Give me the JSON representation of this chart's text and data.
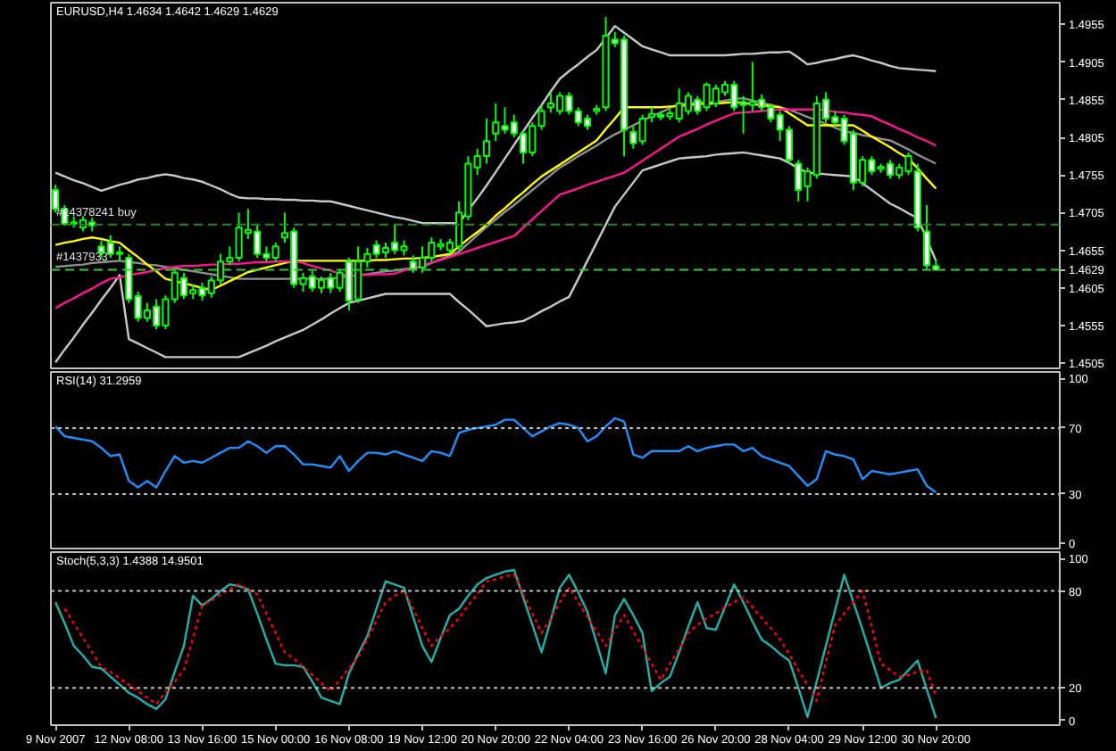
{
  "chart_data": [
    {
      "type": "candlestick",
      "title": "EURUSD,H4  1.4634 1.4642 1.4629 1.4629",
      "color": "#00ff00",
      "categories": [
        null,
        null,
        null,
        null,
        null,
        null,
        null,
        null,
        null,
        null,
        null,
        null,
        null,
        null,
        null,
        null,
        null,
        null,
        null,
        null,
        null,
        null,
        null,
        null,
        null,
        null,
        null,
        null,
        null,
        null,
        null,
        null,
        null,
        null,
        null,
        null,
        null,
        null,
        null,
        null,
        null,
        null,
        null,
        null,
        null,
        null,
        null,
        null,
        null,
        null,
        null,
        null,
        null,
        null,
        null,
        null,
        null,
        null,
        null,
        null,
        null,
        null,
        null,
        null,
        null,
        null,
        null,
        null,
        null,
        null,
        null,
        null,
        null,
        null,
        null,
        null,
        null,
        null,
        null,
        null,
        null,
        null,
        null,
        null,
        null,
        null,
        null,
        null,
        null,
        null,
        null,
        null,
        null,
        null,
        null,
        null,
        null
      ],
      "ohlc": [
        [
          1.4735,
          1.4742,
          1.4705,
          1.471
        ],
        [
          1.471,
          1.4715,
          1.4688,
          1.469
        ],
        [
          1.469,
          1.47,
          1.4685,
          1.4692
        ],
        [
          1.4685,
          1.47,
          1.468,
          1.4695
        ],
        [
          1.4692,
          1.4698,
          1.468,
          1.4688
        ],
        [
          1.466,
          1.4668,
          1.4645,
          1.4652
        ],
        [
          1.4665,
          1.4675,
          1.4645,
          1.465
        ],
        [
          1.465,
          1.466,
          1.464,
          1.4652
        ],
        [
          1.4645,
          1.465,
          1.4585,
          1.459
        ],
        [
          1.4594,
          1.46,
          1.456,
          1.4565
        ],
        [
          1.4565,
          1.4585,
          1.456,
          1.4575
        ],
        [
          1.458,
          1.459,
          1.455,
          1.4555
        ],
        [
          1.4555,
          1.4595,
          1.455,
          1.459
        ],
        [
          1.459,
          1.463,
          1.4585,
          1.4625
        ],
        [
          1.4618,
          1.4625,
          1.459,
          1.4595
        ],
        [
          1.4598,
          1.461,
          1.459,
          1.4602
        ],
        [
          1.4605,
          1.4612,
          1.4588,
          1.4595
        ],
        [
          1.4598,
          1.462,
          1.4592,
          1.4615
        ],
        [
          1.4615,
          1.465,
          1.461,
          1.464
        ],
        [
          1.464,
          1.466,
          1.4635,
          1.4645
        ],
        [
          1.4645,
          1.4705,
          1.464,
          1.4685
        ],
        [
          1.4678,
          1.471,
          1.467,
          1.4682
        ],
        [
          1.468,
          1.4688,
          1.4645,
          1.465
        ],
        [
          1.465,
          1.466,
          1.464,
          1.4645
        ],
        [
          1.4645,
          1.4665,
          1.464,
          1.466
        ],
        [
          1.4672,
          1.4705,
          1.4665,
          1.4678
        ],
        [
          1.468,
          1.4685,
          1.4605,
          1.461
        ],
        [
          1.461,
          1.4625,
          1.46,
          1.4618
        ],
        [
          1.462,
          1.4628,
          1.46,
          1.4605
        ],
        [
          1.4605,
          1.462,
          1.4598,
          1.4615
        ],
        [
          1.4618,
          1.4625,
          1.4598,
          1.4605
        ],
        [
          1.4605,
          1.463,
          1.46,
          1.4625
        ],
        [
          1.464,
          1.4645,
          1.4575,
          1.4588
        ],
        [
          1.459,
          1.466,
          1.4585,
          1.464
        ],
        [
          1.464,
          1.4658,
          1.4632,
          1.465
        ],
        [
          1.4662,
          1.4668,
          1.4645,
          1.465
        ],
        [
          1.4652,
          1.4665,
          1.4645,
          1.4658
        ],
        [
          1.4665,
          1.469,
          1.465,
          1.4655
        ],
        [
          1.4655,
          1.4668,
          1.4648,
          1.466
        ],
        [
          1.464,
          1.4648,
          1.4625,
          1.463
        ],
        [
          1.4632,
          1.466,
          1.4625,
          1.4645
        ],
        [
          1.4645,
          1.4672,
          1.464,
          1.4665
        ],
        [
          1.466,
          1.467,
          1.4655,
          1.4663
        ],
        [
          1.4655,
          1.467,
          1.465,
          1.4665
        ],
        [
          1.466,
          1.472,
          1.4655,
          1.4705
        ],
        [
          1.47,
          1.478,
          1.4695,
          1.477
        ],
        [
          1.4765,
          1.479,
          1.4755,
          1.478
        ],
        [
          1.478,
          1.483,
          1.477,
          1.48
        ],
        [
          1.481,
          1.485,
          1.48,
          1.4825
        ],
        [
          1.482,
          1.4845,
          1.481,
          1.4815
        ],
        [
          1.4825,
          1.4835,
          1.4805,
          1.481
        ],
        [
          1.481,
          1.4815,
          1.477,
          1.4785
        ],
        [
          1.4785,
          1.4825,
          1.478,
          1.482
        ],
        [
          1.482,
          1.4848,
          1.4815,
          1.484
        ],
        [
          1.4845,
          1.4865,
          1.4838,
          1.485
        ],
        [
          1.484,
          1.4865,
          1.4835,
          1.486
        ],
        [
          1.486,
          1.4865,
          1.4835,
          1.484
        ],
        [
          1.484,
          1.4845,
          1.482,
          1.4825
        ],
        [
          1.483,
          1.4835,
          1.4815,
          1.482
        ],
        [
          1.484,
          1.4848,
          1.4835,
          1.4843
        ],
        [
          1.4845,
          1.4965,
          1.484,
          1.494
        ],
        [
          1.4935,
          1.4945,
          1.4925,
          1.493
        ],
        [
          1.4935,
          1.494,
          1.478,
          1.4815
        ],
        [
          1.4812,
          1.482,
          1.479,
          1.4797
        ],
        [
          1.48,
          1.4835,
          1.4795,
          1.483
        ],
        [
          1.4832,
          1.4845,
          1.4825,
          1.4836
        ],
        [
          1.4835,
          1.484,
          1.4828,
          1.4832
        ],
        [
          1.4833,
          1.4842,
          1.4828,
          1.4837
        ],
        [
          1.483,
          1.487,
          1.4825,
          1.485
        ],
        [
          1.484,
          1.4865,
          1.4835,
          1.486
        ],
        [
          1.4855,
          1.486,
          1.4835,
          1.484
        ],
        [
          1.4845,
          1.4878,
          1.484,
          1.4875
        ],
        [
          1.485,
          1.4875,
          1.4845,
          1.487
        ],
        [
          1.4865,
          1.488,
          1.486,
          1.4875
        ],
        [
          1.4875,
          1.488,
          1.484,
          1.4845
        ],
        [
          1.4852,
          1.486,
          1.481,
          1.4848
        ],
        [
          1.4848,
          1.4905,
          1.484,
          1.4852
        ],
        [
          1.4855,
          1.4862,
          1.484,
          1.4845
        ],
        [
          1.4845,
          1.485,
          1.4825,
          1.483
        ],
        [
          1.4835,
          1.484,
          1.48,
          1.4815
        ],
        [
          1.4815,
          1.482,
          1.477,
          1.4775
        ],
        [
          1.477,
          1.4775,
          1.472,
          1.4735
        ],
        [
          1.474,
          1.4765,
          1.472,
          1.476
        ],
        [
          1.4755,
          1.486,
          1.475,
          1.485
        ],
        [
          1.4855,
          1.4865,
          1.4825,
          1.483
        ],
        [
          1.4832,
          1.484,
          1.482,
          1.4825
        ],
        [
          1.483,
          1.4835,
          1.4795,
          1.48
        ],
        [
          1.481,
          1.4815,
          1.4735,
          1.4745
        ],
        [
          1.4745,
          1.478,
          1.474,
          1.4775
        ],
        [
          1.4775,
          1.478,
          1.4755,
          1.476
        ],
        [
          1.4763,
          1.477,
          1.4758,
          1.4766
        ],
        [
          1.477,
          1.4775,
          1.475,
          1.4755
        ],
        [
          1.4755,
          1.477,
          1.475,
          1.4765
        ],
        [
          1.476,
          1.4785,
          1.4755,
          1.478
        ],
        [
          1.476,
          1.477,
          1.468,
          1.4685
        ],
        [
          1.468,
          1.4715,
          1.463,
          1.4635
        ],
        [
          1.4634,
          1.4642,
          1.4629,
          1.4629
        ]
      ],
      "colors": [
        "#ffffff",
        "#ffffff",
        "#000000",
        "#000000",
        "#ffffff",
        "#ffffff",
        "#ffffff",
        "#000000",
        "#ffffff",
        "#ffffff",
        "#000000",
        "#ffffff",
        "#000000",
        "#000000",
        "#ffffff",
        "#000000",
        "#ffffff",
        "#000000",
        "#000000",
        "#000000",
        "#000000",
        "#000000",
        "#ffffff",
        "#ffffff",
        "#000000",
        "#000000",
        "#ffffff",
        "#000000",
        "#ffffff",
        "#000000",
        "#ffffff",
        "#000000",
        "#ffffff",
        "#000000",
        "#000000",
        "#ffffff",
        "#000000",
        "#ffffff",
        "#000000",
        "#ffffff",
        "#000000",
        "#000000",
        "#000000",
        "#000000",
        "#000000",
        "#000000",
        "#000000",
        "#000000",
        "#000000",
        "#ffffff",
        "#ffffff",
        "#ffffff",
        "#000000",
        "#000000",
        "#000000",
        "#000000",
        "#ffffff",
        "#ffffff",
        "#ffffff",
        "#000000",
        "#000000",
        "#ffffff",
        "#ffffff",
        "#ffffff",
        "#000000",
        "#000000",
        "#ffffff",
        "#000000",
        "#000000",
        "#000000",
        "#ffffff",
        "#000000",
        "#000000",
        "#000000",
        "#ffffff",
        "#ffffff",
        "#000000",
        "#ffffff",
        "#ffffff",
        "#ffffff",
        "#ffffff",
        "#ffffff",
        "#000000",
        "#000000",
        "#ffffff",
        "#ffffff",
        "#ffffff",
        "#ffffff",
        "#000000",
        "#ffffff",
        "#000000",
        "#ffffff",
        "#000000",
        "#000000",
        "#ffffff",
        "#ffffff",
        "#ffffff"
      ],
      "series": [
        {
          "type": "line",
          "color": "#c8c8c8",
          "values": [
            1.4758,
            1.4753,
            1.4748,
            1.4744,
            1.4739,
            1.4734,
            1.4738,
            1.4742,
            1.4745,
            1.4749,
            1.4751,
            1.4754,
            1.4756,
            1.4754,
            1.4751,
            1.4749,
            1.4746,
            1.4741,
            1.4736,
            1.473,
            1.4725,
            1.4724,
            1.4724,
            1.4723,
            1.4723,
            1.4722,
            1.4722,
            1.4721,
            1.4721,
            1.472,
            1.472,
            1.4717,
            1.4714,
            1.4711,
            1.4708,
            1.4705,
            1.4702,
            1.4699,
            1.4697,
            1.4694,
            1.4691,
            1.4691,
            1.4691,
            1.4691,
            1.4691,
            1.4708,
            1.4724,
            1.4741,
            1.4759,
            1.4777,
            1.4795,
            1.4813,
            1.4831,
            1.4848,
            1.4866,
            1.4883,
            1.4893,
            1.4902,
            1.4912,
            1.4921,
            1.4937,
            1.4953,
            1.4944,
            1.4935,
            1.4926,
            1.4922,
            1.4918,
            1.4914,
            1.4914,
            1.4914,
            1.4914,
            1.4914,
            1.4914,
            1.4914,
            1.4915,
            1.4916,
            1.4916,
            1.4917,
            1.4918,
            1.4918,
            1.4919,
            1.4911,
            1.4902,
            1.4904,
            1.4907,
            1.4909,
            1.4912,
            1.4914,
            1.4911,
            1.4907,
            1.4904,
            1.49,
            1.4897,
            1.4896,
            1.4895,
            1.4894,
            1.4893
          ]
        },
        {
          "type": "line",
          "color": "#909090",
          "values": [
            1.4633,
            1.4634,
            1.4635,
            1.4636,
            1.4638,
            1.4639,
            1.464,
            1.4641,
            1.4639,
            1.4638,
            1.4636,
            1.4635,
            1.4633,
            1.4631,
            1.4629,
            1.4627,
            1.4625,
            1.4623,
            1.4621,
            1.4619,
            1.4617,
            1.4617,
            1.4617,
            1.4617,
            1.4617,
            1.4617,
            1.4617,
            1.4617,
            1.4617,
            1.4617,
            1.4617,
            1.4619,
            1.462,
            1.4622,
            1.4623,
            1.4625,
            1.4627,
            1.4628,
            1.463,
            1.4631,
            1.4633,
            1.4638,
            1.4643,
            1.4648,
            1.4653,
            1.4664,
            1.4675,
            1.4686,
            1.4696,
            1.4706,
            1.4715,
            1.4725,
            1.4735,
            1.4745,
            1.4755,
            1.4765,
            1.4772,
            1.478,
            1.4787,
            1.4794,
            1.4802,
            1.4809,
            1.4815,
            1.4821,
            1.4827,
            1.4833,
            1.4838,
            1.4844,
            1.4849,
            1.485,
            1.4851,
            1.4852,
            1.4852,
            1.4854,
            1.4856,
            1.4857,
            1.4854,
            1.4851,
            1.4848,
            1.4845,
            1.4842,
            1.4837,
            1.4832,
            1.4828,
            1.4823,
            1.4818,
            1.4813,
            1.4811,
            1.4808,
            1.4806,
            1.4803,
            1.4801,
            1.4795,
            1.4789,
            1.4782,
            1.4776,
            1.477
          ]
        },
        {
          "type": "line",
          "color": "#c8c8c8",
          "values": [
            1.4506,
            1.4523,
            1.4539,
            1.4556,
            1.4572,
            1.4589,
            1.4605,
            1.4622,
            1.4537,
            1.4531,
            1.4525,
            1.4519,
            1.4513,
            1.4513,
            1.4513,
            1.4513,
            1.4513,
            1.4513,
            1.4513,
            1.4513,
            1.4513,
            1.4518,
            1.4523,
            1.4528,
            1.4534,
            1.4539,
            1.4544,
            1.4549,
            1.4556,
            1.4563,
            1.4571,
            1.4578,
            1.4585,
            1.4588,
            1.4591,
            1.4594,
            1.4597,
            1.4597,
            1.4597,
            1.4597,
            1.4597,
            1.4597,
            1.4597,
            1.4597,
            1.4586,
            1.4576,
            1.4565,
            1.4554,
            1.4556,
            1.4558,
            1.4559,
            1.4561,
            1.4567,
            1.4574,
            1.458,
            1.4587,
            1.4593,
            1.4617,
            1.4641,
            1.4665,
            1.4689,
            1.4713,
            1.4729,
            1.4745,
            1.4761,
            1.4765,
            1.4769,
            1.4773,
            1.4777,
            1.4778,
            1.4779,
            1.478,
            1.4782,
            1.4783,
            1.4784,
            1.4785,
            1.4783,
            1.4781,
            1.4779,
            1.4777,
            1.4771,
            1.4764,
            1.4758,
            1.4757,
            1.4756,
            1.4755,
            1.4754,
            1.4753,
            1.4744,
            1.4735,
            1.4726,
            1.4717,
            1.4711,
            1.4704,
            1.4698,
            1.467,
            1.4641
          ]
        },
        {
          "type": "line",
          "color": "#ffff00",
          "values": [
            1.4662,
            1.4665,
            1.4667,
            1.467,
            1.4672,
            1.467,
            1.4667,
            1.4665,
            1.4655,
            1.4646,
            1.4636,
            1.4627,
            1.4617,
            1.4614,
            1.4611,
            1.4608,
            1.4605,
            1.4602,
            1.4608,
            1.4614,
            1.462,
            1.4626,
            1.4629,
            1.4632,
            1.4635,
            1.4638,
            1.4641,
            1.4641,
            1.4641,
            1.4641,
            1.4641,
            1.4641,
            1.4641,
            1.4641,
            1.4641,
            1.4642,
            1.4642,
            1.4643,
            1.4644,
            1.4644,
            1.4645,
            1.4646,
            1.4648,
            1.465,
            1.466,
            1.467,
            1.4679,
            1.4689,
            1.4701,
            1.4711,
            1.4722,
            1.4732,
            1.4743,
            1.4753,
            1.4761,
            1.4769,
            1.4777,
            1.4785,
            1.4793,
            1.4801,
            1.4816,
            1.483,
            1.4845,
            1.4845,
            1.4845,
            1.4845,
            1.4845,
            1.4846,
            1.4847,
            1.4848,
            1.4849,
            1.485,
            1.485,
            1.4851,
            1.4852,
            1.4851,
            1.4849,
            1.4848,
            1.4846,
            1.4845,
            1.4837,
            1.4829,
            1.4821,
            1.4821,
            1.4821,
            1.4821,
            1.4821,
            1.4821,
            1.4814,
            1.4806,
            1.4799,
            1.4792,
            1.4784,
            1.4777,
            1.4764,
            1.475,
            1.4737
          ]
        },
        {
          "type": "line",
          "color": "#ff1493",
          "values": [
            1.4578,
            1.4585,
            1.4591,
            1.4598,
            1.4604,
            1.4611,
            1.4617,
            1.4619,
            1.4622,
            1.4624,
            1.4626,
            1.4629,
            1.4631,
            1.4633,
            1.4634,
            1.4634,
            1.4635,
            1.4636,
            1.4636,
            1.4637,
            1.4637,
            1.4638,
            1.4639,
            1.4639,
            1.464,
            1.464,
            1.4641,
            1.4638,
            1.4634,
            1.4631,
            1.4628,
            1.4624,
            1.4621,
            1.4622,
            1.4622,
            1.4623,
            1.4623,
            1.4624,
            1.4628,
            1.4631,
            1.4635,
            1.4639,
            1.4642,
            1.4646,
            1.465,
            1.4654,
            1.4658,
            1.4662,
            1.4666,
            1.467,
            1.4674,
            1.4685,
            1.4696,
            1.4707,
            1.4718,
            1.4729,
            1.4733,
            1.4737,
            1.4742,
            1.4746,
            1.475,
            1.4754,
            1.4758,
            1.4766,
            1.4774,
            1.4782,
            1.479,
            1.4798,
            1.4806,
            1.4811,
            1.4816,
            1.4822,
            1.4827,
            1.4832,
            1.4837,
            1.4838,
            1.4839,
            1.484,
            1.4841,
            1.4842,
            1.4842,
            1.4842,
            1.4842,
            1.4842,
            1.4841,
            1.4839,
            1.4838,
            1.4836,
            1.4835,
            1.4833,
            1.4827,
            1.4822,
            1.4816,
            1.4811,
            1.4805,
            1.48,
            1.4794
          ]
        }
      ],
      "ylim": [
        1.4498,
        1.4984
      ],
      "yticks": [
        1.4505,
        1.4555,
        1.4605,
        1.4629,
        1.4655,
        1.4705,
        1.4755,
        1.4805,
        1.4855,
        1.4905,
        1.4955
      ],
      "tick_labels": "y",
      "ref_lines": [
        {
          "axis": "y",
          "value": 1.4689,
          "color": "#228b22",
          "line_style": "dashed"
        },
        {
          "axis": "y",
          "value": 1.4629,
          "color": "#32cd32",
          "line_style": "dashed"
        }
      ],
      "annotations": [
        {
          "text": "#14378241 buy",
          "y": 1.4689
        },
        {
          "text": "#1437933",
          "y": 1.4629
        }
      ]
    },
    {
      "type": "line",
      "title": "RSI(14) 31.2959",
      "categories": [
        null,
        null,
        null,
        null,
        null,
        null,
        null,
        null,
        null,
        null,
        null,
        null,
        null,
        null,
        null,
        null,
        null,
        null,
        null,
        null,
        null,
        null,
        null,
        null,
        null,
        null,
        null,
        null,
        null,
        null,
        null,
        null,
        null,
        null,
        null,
        null,
        null,
        null,
        null,
        null,
        null,
        null,
        null,
        null,
        null,
        null,
        null,
        null,
        null,
        null,
        null,
        null,
        null,
        null,
        null,
        null,
        null,
        null,
        null,
        null,
        null,
        null,
        null,
        null,
        null,
        null,
        null,
        null,
        null,
        null,
        null,
        null,
        null,
        null,
        null,
        null,
        null,
        null,
        null,
        null,
        null,
        null,
        null,
        null,
        null,
        null,
        null,
        null,
        null,
        null,
        null,
        null,
        null,
        null,
        null,
        null,
        null
      ],
      "series": [
        {
          "color": "#1e90ff",
          "values": [
            71,
            65,
            64,
            63,
            62,
            58,
            53,
            54,
            38,
            34,
            38,
            34,
            44,
            53,
            49,
            50,
            49,
            52,
            55,
            58,
            58,
            62,
            59,
            55,
            59,
            59,
            54,
            48,
            48,
            47,
            46,
            53,
            44,
            50,
            55,
            55,
            54,
            56,
            54,
            52,
            50,
            56,
            55,
            53,
            67,
            69,
            70,
            71,
            72,
            75,
            75,
            70,
            65,
            68,
            71,
            73,
            72,
            70,
            62,
            65,
            71,
            76,
            74,
            54,
            52,
            56,
            56,
            56,
            56,
            59,
            56,
            58,
            59,
            60,
            60,
            56,
            58,
            53,
            51,
            49,
            47,
            41,
            35,
            39,
            56,
            54,
            53,
            51,
            39,
            44,
            43,
            42,
            43,
            44,
            45,
            35,
            31
          ]
        }
      ],
      "ylim": [
        -3,
        104
      ],
      "yticks": [
        0,
        30,
        70,
        100
      ],
      "tick_labels": "y",
      "ref_lines": [
        {
          "axis": "y",
          "value": 70,
          "color": "#c0c0c0",
          "line_style": "dotted"
        },
        {
          "axis": "y",
          "value": 30,
          "color": "#c0c0c0",
          "line_style": "dotted"
        }
      ]
    },
    {
      "type": "line",
      "title": "Stoch(5,3,3) 1.4388 14.9501",
      "categories": [
        "9 Nov 2007",
        null,
        null,
        null,
        null,
        null,
        null,
        null,
        "12 Nov 08:00",
        null,
        null,
        null,
        null,
        null,
        null,
        null,
        "13 Nov 16:00",
        null,
        null,
        null,
        null,
        null,
        null,
        null,
        "15 Nov 00:00",
        null,
        null,
        null,
        null,
        null,
        null,
        null,
        "16 Nov 08:00",
        null,
        null,
        null,
        null,
        null,
        null,
        null,
        "19 Nov 12:00",
        null,
        null,
        null,
        null,
        null,
        null,
        null,
        "20 Nov 20:00",
        null,
        null,
        null,
        null,
        null,
        null,
        null,
        "22 Nov 04:00",
        null,
        null,
        null,
        null,
        null,
        null,
        null,
        "23 Nov 16:00",
        null,
        null,
        null,
        null,
        null,
        null,
        null,
        "26 Nov 20:00",
        null,
        null,
        null,
        null,
        null,
        null,
        null,
        "28 Nov 04:00",
        null,
        null,
        null,
        null,
        null,
        null,
        null,
        "29 Nov 12:00",
        null,
        null,
        null,
        null,
        null,
        null,
        null,
        "30 Nov 20:00"
      ],
      "series": [
        {
          "color": "#20b2aa",
          "values": [
            73,
            60,
            46,
            40,
            33,
            32,
            27,
            22,
            17,
            14,
            10,
            7,
            13,
            30,
            46,
            77,
            71,
            75,
            80,
            84,
            83,
            81,
            66,
            50,
            35,
            34,
            34,
            33,
            24,
            14,
            12,
            10,
            29,
            41,
            52,
            69,
            86,
            84,
            82,
            64,
            46,
            36,
            51,
            65,
            69,
            77,
            84,
            88,
            90,
            92,
            93,
            76,
            59,
            42,
            62,
            82,
            90,
            79,
            67,
            48,
            29,
            65,
            75,
            65,
            54,
            18,
            23,
            27,
            42,
            58,
            73,
            57,
            56,
            70,
            84,
            73,
            61,
            50,
            46,
            41,
            37,
            20,
            2,
            24,
            46,
            68,
            90,
            73,
            56,
            38,
            20,
            23,
            25,
            31,
            37,
            19,
            1.4
          ]
        },
        {
          "color": "#ff0000",
          "line_style": "dotted",
          "values": [
            null,
            69,
            60,
            51,
            42,
            33,
            30,
            26,
            22,
            18,
            14,
            10,
            17,
            24,
            31,
            51,
            71,
            74,
            78,
            81,
            84,
            81,
            78,
            66,
            54,
            42,
            38,
            33,
            28,
            23,
            18,
            25,
            32,
            39,
            50,
            62,
            73,
            77,
            80,
            69,
            57,
            46,
            52,
            57,
            63,
            71,
            78,
            86,
            87,
            89,
            90,
            78,
            66,
            54,
            63,
            73,
            82,
            73,
            64,
            55,
            46,
            56,
            65,
            55,
            45,
            35,
            25,
            35,
            44,
            54,
            59,
            63,
            66,
            70,
            73,
            76,
            70,
            63,
            57,
            50,
            41,
            31,
            22,
            12,
            36,
            59,
            66,
            73,
            80,
            58,
            35,
            31,
            27,
            28,
            30,
            31,
            15
          ]
        }
      ],
      "ylim": [
        -3,
        104
      ],
      "yticks": [
        0,
        20,
        80,
        100
      ],
      "ref_lines": [
        {
          "axis": "y",
          "value": 80,
          "color": "#c0c0c0",
          "line_style": "dotted"
        },
        {
          "axis": "y",
          "value": 20,
          "color": "#c0c0c0",
          "line_style": "dotted"
        }
      ]
    }
  ]
}
